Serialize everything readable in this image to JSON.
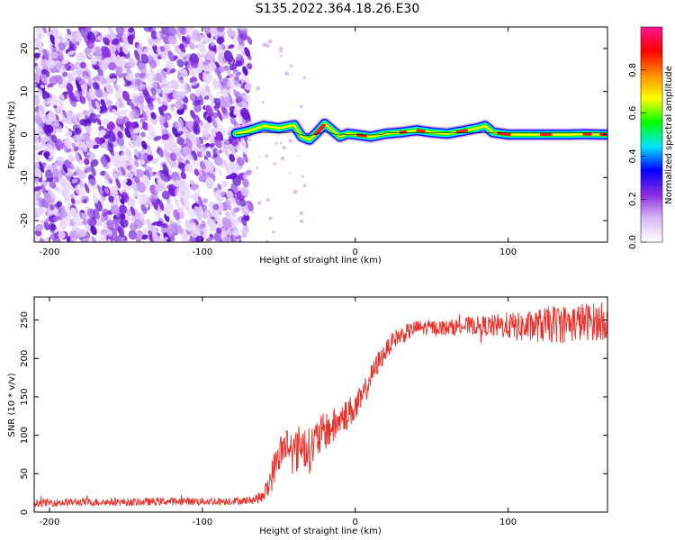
{
  "title": "S135.2022.364.18.26.E30",
  "chart_data": [
    {
      "type": "heatmap",
      "xlabel": "Height of straight line (km)",
      "ylabel": "Frequency (Hz)",
      "xlim": [
        -210,
        165
      ],
      "ylim": [
        -25,
        25
      ],
      "xticks": [
        -200,
        -100,
        0,
        100
      ],
      "yticks": [
        -20,
        -10,
        0,
        10,
        20
      ],
      "colorbar": {
        "label": "Normalized spectral amplitude",
        "range": [
          0,
          1
        ],
        "ticks": [
          "0.0",
          "0.2",
          "0.4",
          "0.6",
          "0.8"
        ],
        "colormap": [
          "#ffffff",
          "#d8b8f8",
          "#8a2be2",
          "#0000ff",
          "#00e5ff",
          "#00ff00",
          "#ffff00",
          "#ff8c00",
          "#ff0000",
          "#ff1493"
        ]
      },
      "ridge": {
        "x": [
          -78,
          -70,
          -60,
          -50,
          -40,
          -35,
          -30,
          -25,
          -20,
          -15,
          -10,
          -5,
          0,
          10,
          20,
          30,
          40,
          50,
          60,
          70,
          80,
          85,
          90,
          100,
          110,
          120,
          130,
          140,
          150,
          160,
          165
        ],
        "y": [
          0.2,
          0.8,
          2.0,
          1.5,
          2.2,
          -0.5,
          -1.2,
          0.5,
          2.5,
          1.0,
          -0.5,
          0.2,
          0.0,
          -0.5,
          0.2,
          0.5,
          1.0,
          0.5,
          0.2,
          0.8,
          1.5,
          2.0,
          0.5,
          0.0,
          0.0,
          0.0,
          0.0,
          0.0,
          0.1,
          0.0,
          0.0
        ]
      },
      "noise_region_x": [
        -210,
        -72
      ]
    },
    {
      "type": "line",
      "xlabel": "Height of straight line (km)",
      "ylabel": "SNR (10 * v/v)",
      "xlim": [
        -210,
        165
      ],
      "ylim": [
        0,
        280
      ],
      "xticks": [
        -200,
        -100,
        0,
        100
      ],
      "yticks": [
        0,
        50,
        100,
        150,
        200,
        250
      ],
      "line_color": "#e8312b",
      "series": [
        {
          "x": [
            -210,
            -180,
            -150,
            -120,
            -90,
            -70,
            -60,
            -55,
            -50,
            -45,
            -40,
            -35,
            -30,
            -25,
            -20,
            -15,
            -10,
            -5,
            0,
            5,
            10,
            15,
            20,
            25,
            30,
            40,
            50,
            60,
            70,
            80,
            90,
            100,
            110,
            120,
            130,
            140,
            150,
            160,
            165
          ],
          "y": [
            12,
            13,
            13,
            14,
            14,
            15,
            20,
            45,
            75,
            90,
            75,
            90,
            80,
            95,
            105,
            110,
            120,
            130,
            135,
            150,
            175,
            195,
            210,
            225,
            230,
            240,
            240,
            240,
            242,
            243,
            242,
            243,
            240,
            243,
            245,
            245,
            248,
            248,
            250
          ],
          "noise_amp": [
            5,
            5,
            5,
            5,
            5,
            5,
            8,
            20,
            25,
            25,
            30,
            30,
            30,
            28,
            25,
            25,
            20,
            20,
            20,
            18,
            15,
            15,
            12,
            12,
            12,
            10,
            10,
            10,
            12,
            12,
            15,
            18,
            20,
            22,
            25,
            25,
            25,
            25,
            25
          ]
        }
      ]
    }
  ]
}
